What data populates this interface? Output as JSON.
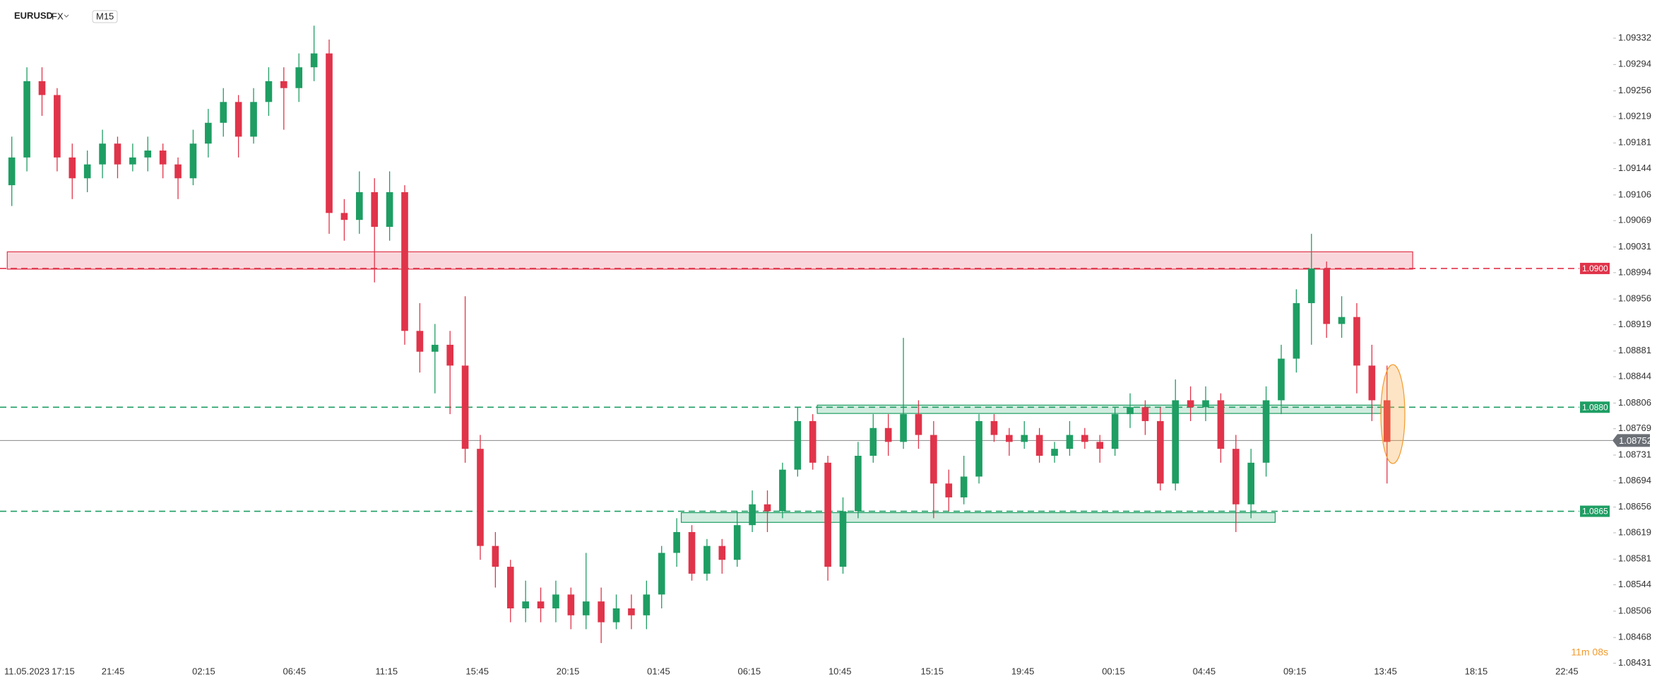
{
  "header": {
    "symbol": "EURUSD",
    "market": "FX",
    "interval": "M15"
  },
  "timer": "11m 08s",
  "chart_data": {
    "type": "candlestick",
    "ylim": [
      1.08401,
      1.09387
    ],
    "xlim": [
      -0.5,
      105.5
    ],
    "yticks": [
      1.09332,
      1.09294,
      1.09256,
      1.09219,
      1.09181,
      1.09144,
      1.09106,
      1.09069,
      1.09031,
      1.08994,
      1.08956,
      1.08919,
      1.08881,
      1.08844,
      1.08806,
      1.08769,
      1.08731,
      1.08694,
      1.08656,
      1.08619,
      1.08581,
      1.08544,
      1.08506,
      1.08468,
      1.08431
    ],
    "xticks": [
      {
        "value": 1.0,
        "label": "11.05.2023"
      },
      {
        "value": 3.4,
        "label": "17:15"
      },
      {
        "value": 6.7,
        "label": "21:45"
      },
      {
        "value": 12.7,
        "label": "02:15"
      },
      {
        "value": 18.7,
        "label": "06:45"
      },
      {
        "value": 24.8,
        "label": "11:15"
      },
      {
        "value": 30.8,
        "label": "15:45"
      },
      {
        "value": 36.8,
        "label": "20:15"
      },
      {
        "value": 42.8,
        "label": "01:45"
      },
      {
        "value": 48.8,
        "label": "06:15"
      },
      {
        "value": 54.8,
        "label": "10:45"
      },
      {
        "value": 60.9,
        "label": "15:15"
      },
      {
        "value": 66.9,
        "label": "19:45"
      },
      {
        "value": 72.9,
        "label": "00:15"
      },
      {
        "value": 78.9,
        "label": "04:45"
      },
      {
        "value": 84.9,
        "label": "09:15"
      },
      {
        "value": 90.9,
        "label": "13:45"
      },
      {
        "value": 96.9,
        "label": "18:15"
      },
      {
        "value": 102.9,
        "label": "22:45"
      }
    ],
    "candles": {
      "up_color": "#1e9e63",
      "down_color": "#e0344a",
      "ohlc": [
        [
          1.0912,
          1.0919,
          1.0909,
          1.0916
        ],
        [
          1.0916,
          1.0929,
          1.0914,
          1.0927
        ],
        [
          1.0927,
          1.0929,
          1.0922,
          1.0925
        ],
        [
          1.0925,
          1.0926,
          1.0914,
          1.0916
        ],
        [
          1.0916,
          1.0918,
          1.091,
          1.0913
        ],
        [
          1.0913,
          1.0917,
          1.0911,
          1.0915
        ],
        [
          1.0915,
          1.092,
          1.0913,
          1.0918
        ],
        [
          1.0918,
          1.0919,
          1.0913,
          1.0915
        ],
        [
          1.0915,
          1.0918,
          1.0914,
          1.0916
        ],
        [
          1.0916,
          1.0919,
          1.0914,
          1.0917
        ],
        [
          1.0917,
          1.0918,
          1.0913,
          1.0915
        ],
        [
          1.0915,
          1.0916,
          1.091,
          1.0913
        ],
        [
          1.0913,
          1.092,
          1.0912,
          1.0918
        ],
        [
          1.0918,
          1.0923,
          1.0916,
          1.0921
        ],
        [
          1.0921,
          1.0926,
          1.0919,
          1.0924
        ],
        [
          1.0924,
          1.0925,
          1.0916,
          1.0919
        ],
        [
          1.0919,
          1.0926,
          1.0918,
          1.0924
        ],
        [
          1.0924,
          1.0929,
          1.0922,
          1.0927
        ],
        [
          1.0927,
          1.0929,
          1.092,
          1.0926
        ],
        [
          1.0926,
          1.0931,
          1.0924,
          1.0929
        ],
        [
          1.0929,
          1.0935,
          1.0927,
          1.0931
        ],
        [
          1.0931,
          1.0933,
          1.0905,
          1.0908
        ],
        [
          1.0908,
          1.091,
          1.0904,
          1.0907
        ],
        [
          1.0907,
          1.0914,
          1.0905,
          1.0911
        ],
        [
          1.0911,
          1.0913,
          1.0898,
          1.0906
        ],
        [
          1.0906,
          1.0914,
          1.0904,
          1.0911
        ],
        [
          1.0911,
          1.0912,
          1.0889,
          1.0891
        ],
        [
          1.0891,
          1.0895,
          1.0885,
          1.0888
        ],
        [
          1.0888,
          1.0892,
          1.0882,
          1.0889
        ],
        [
          1.0889,
          1.0891,
          1.0879,
          1.0886
        ],
        [
          1.0886,
          1.0896,
          1.0872,
          1.0874
        ],
        [
          1.0874,
          1.0876,
          1.0858,
          1.086
        ],
        [
          1.086,
          1.0862,
          1.0854,
          1.0857
        ],
        [
          1.0857,
          1.0858,
          1.0849,
          1.0851
        ],
        [
          1.0851,
          1.0855,
          1.0849,
          1.0852
        ],
        [
          1.0852,
          1.0854,
          1.0849,
          1.0851
        ],
        [
          1.0851,
          1.0855,
          1.0849,
          1.0853
        ],
        [
          1.0853,
          1.0854,
          1.0848,
          1.085
        ],
        [
          1.085,
          1.0859,
          1.0848,
          1.0852
        ],
        [
          1.0852,
          1.0854,
          1.0846,
          1.0849
        ],
        [
          1.0849,
          1.0853,
          1.0848,
          1.0851
        ],
        [
          1.0851,
          1.0853,
          1.0848,
          1.085
        ],
        [
          1.085,
          1.0855,
          1.0848,
          1.0853
        ],
        [
          1.0853,
          1.086,
          1.0851,
          1.0859
        ],
        [
          1.0859,
          1.0864,
          1.0857,
          1.0862
        ],
        [
          1.0862,
          1.0863,
          1.0855,
          1.0856
        ],
        [
          1.0856,
          1.0861,
          1.0855,
          1.086
        ],
        [
          1.086,
          1.0861,
          1.0856,
          1.0858
        ],
        [
          1.0858,
          1.0865,
          1.0857,
          1.0863
        ],
        [
          1.0863,
          1.0868,
          1.0862,
          1.0866
        ],
        [
          1.0866,
          1.0868,
          1.0862,
          1.0865
        ],
        [
          1.0865,
          1.0872,
          1.0864,
          1.0871
        ],
        [
          1.0871,
          1.088,
          1.087,
          1.0878
        ],
        [
          1.0878,
          1.0879,
          1.0871,
          1.0872
        ],
        [
          1.0872,
          1.0873,
          1.0855,
          1.0857
        ],
        [
          1.0857,
          1.0867,
          1.0856,
          1.0865
        ],
        [
          1.0865,
          1.0875,
          1.0864,
          1.0873
        ],
        [
          1.0873,
          1.0879,
          1.0872,
          1.0877
        ],
        [
          1.0877,
          1.0879,
          1.0873,
          1.0875
        ],
        [
          1.0875,
          1.089,
          1.0874,
          1.0879
        ],
        [
          1.0879,
          1.0881,
          1.0874,
          1.0876
        ],
        [
          1.0876,
          1.0878,
          1.0864,
          1.0869
        ],
        [
          1.0869,
          1.0871,
          1.0865,
          1.0867
        ],
        [
          1.0867,
          1.0873,
          1.0866,
          1.087
        ],
        [
          1.087,
          1.0879,
          1.0869,
          1.0878
        ],
        [
          1.0878,
          1.0879,
          1.0875,
          1.0876
        ],
        [
          1.0876,
          1.0877,
          1.0873,
          1.0875
        ],
        [
          1.0875,
          1.0878,
          1.0874,
          1.0876
        ],
        [
          1.0876,
          1.0877,
          1.0872,
          1.0873
        ],
        [
          1.0873,
          1.0875,
          1.0872,
          1.0874
        ],
        [
          1.0874,
          1.0878,
          1.0873,
          1.0876
        ],
        [
          1.0876,
          1.0877,
          1.0874,
          1.0875
        ],
        [
          1.0875,
          1.0876,
          1.0872,
          1.0874
        ],
        [
          1.0874,
          1.088,
          1.0873,
          1.0879
        ],
        [
          1.0879,
          1.0882,
          1.0877,
          1.088
        ],
        [
          1.088,
          1.0881,
          1.0876,
          1.0878
        ],
        [
          1.0878,
          1.088,
          1.0868,
          1.0869
        ],
        [
          1.0869,
          1.0884,
          1.0868,
          1.0881
        ],
        [
          1.0881,
          1.0883,
          1.0878,
          1.088
        ],
        [
          1.088,
          1.0883,
          1.0878,
          1.0881
        ],
        [
          1.0881,
          1.0882,
          1.0872,
          1.0874
        ],
        [
          1.0874,
          1.0876,
          1.0862,
          1.0866
        ],
        [
          1.0866,
          1.0874,
          1.0864,
          1.0872
        ],
        [
          1.0872,
          1.0883,
          1.087,
          1.0881
        ],
        [
          1.0881,
          1.0889,
          1.0879,
          1.0887
        ],
        [
          1.0887,
          1.0897,
          1.0885,
          1.0895
        ],
        [
          1.0895,
          1.0905,
          1.0889,
          1.09
        ],
        [
          1.09,
          1.0901,
          1.089,
          1.0892
        ],
        [
          1.0892,
          1.0896,
          1.089,
          1.0893
        ],
        [
          1.0893,
          1.0895,
          1.0882,
          1.0886
        ],
        [
          1.0886,
          1.0889,
          1.0878,
          1.0881
        ],
        [
          1.0881,
          1.0886,
          1.0869,
          1.0875
        ]
      ]
    },
    "zones": [
      {
        "from": -0.3,
        "to": 92.7,
        "top": 1.09024,
        "bottom": 1.08999,
        "color": "#e0344a"
      },
      {
        "from": 53.3,
        "to": 90.6,
        "top": 1.08803,
        "bottom": 1.08791,
        "color": "#1e9e63"
      },
      {
        "from": 44.3,
        "to": 83.6,
        "top": 1.08648,
        "bottom": 1.08634,
        "color": "#1e9e63"
      }
    ],
    "levels": [
      {
        "value": 1.09,
        "label": "1.0900",
        "color": "#e0344a"
      },
      {
        "value": 1.088,
        "label": "1.0880",
        "color": "#1e9e63"
      },
      {
        "value": 1.0865,
        "label": "1.0865",
        "color": "#1e9e63"
      }
    ],
    "last_price": 1.08752
  }
}
